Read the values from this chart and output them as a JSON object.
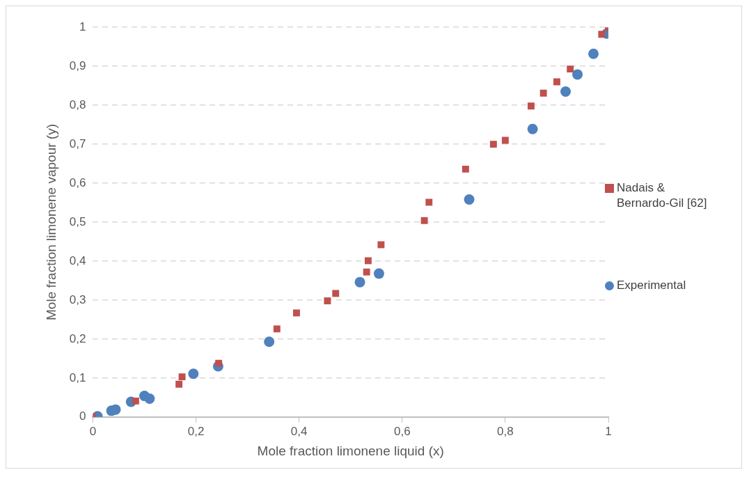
{
  "chart_data": {
    "type": "scatter",
    "xlabel": "Mole fraction limonene liquid (x)",
    "ylabel": "Mole fraction limonene vapour (y)",
    "xlim": [
      0,
      1
    ],
    "xticks": [
      {
        "value": 0,
        "label": "0"
      },
      {
        "value": 0.2,
        "label": "0,2"
      },
      {
        "value": 0.4,
        "label": "0,4"
      },
      {
        "value": 0.6,
        "label": "0,6"
      },
      {
        "value": 0.8,
        "label": "0,8"
      },
      {
        "value": 1,
        "label": "1"
      }
    ],
    "ylim": [
      0,
      1
    ],
    "yticks": [
      {
        "value": 0,
        "label": "0"
      },
      {
        "value": 0.1,
        "label": "0,1"
      },
      {
        "value": 0.2,
        "label": "0,2"
      },
      {
        "value": 0.3,
        "label": "0,3"
      },
      {
        "value": 0.4,
        "label": "0,4"
      },
      {
        "value": 0.5,
        "label": "0,5"
      },
      {
        "value": 0.6,
        "label": "0,6"
      },
      {
        "value": 0.7,
        "label": "0,7"
      },
      {
        "value": 0.8,
        "label": "0,8"
      },
      {
        "value": 0.9,
        "label": "0,9"
      },
      {
        "value": 1,
        "label": "1"
      }
    ],
    "grid": "y",
    "legend": "right",
    "series": [
      {
        "name": "Nadais & Bernardo-Gil [62]",
        "color": "#c0504d",
        "marker": "square",
        "x": [
          0,
          0.083,
          0.167,
          0.173,
          0.244,
          0.357,
          0.395,
          0.455,
          0.471,
          0.531,
          0.534,
          0.559,
          0.643,
          0.652,
          0.723,
          0.777,
          0.8,
          0.85,
          0.874,
          0.9,
          0.926,
          0.987,
          1
        ],
        "values": [
          0,
          0.041,
          0.084,
          0.103,
          0.138,
          0.226,
          0.267,
          0.298,
          0.317,
          0.372,
          0.401,
          0.442,
          0.504,
          0.551,
          0.636,
          0.7,
          0.71,
          0.798,
          0.831,
          0.86,
          0.893,
          0.982,
          1
        ]
      },
      {
        "name": "Experimental",
        "color": "#4f81bd",
        "marker": "circle",
        "x": [
          0.009,
          0.036,
          0.044,
          0.074,
          0.1,
          0.11,
          0.195,
          0.243,
          0.342,
          0.518,
          0.555,
          0.73,
          0.853,
          0.917,
          0.94,
          0.971,
          0.997
        ],
        "values": [
          0.002,
          0.016,
          0.019,
          0.039,
          0.054,
          0.047,
          0.111,
          0.13,
          0.193,
          0.346,
          0.368,
          0.558,
          0.739,
          0.835,
          0.879,
          0.932,
          0.984
        ]
      }
    ]
  }
}
